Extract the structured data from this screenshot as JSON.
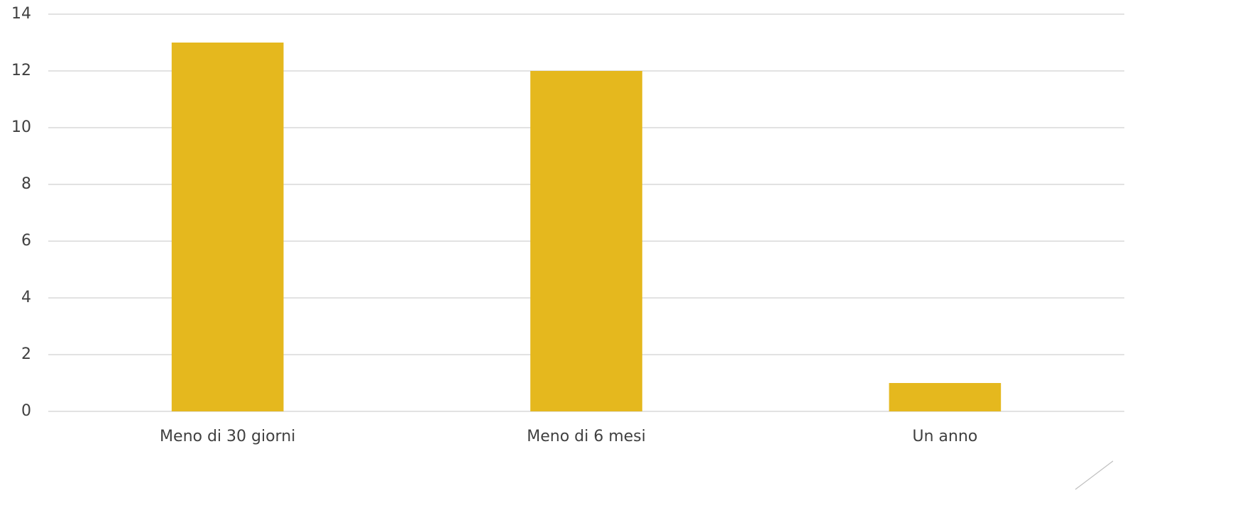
{
  "chart_data": {
    "type": "bar",
    "categories": [
      "Meno di 30 giorni",
      "Meno di 6 mesi",
      "Un anno"
    ],
    "values": [
      13,
      12,
      1
    ],
    "color": "#e5b81e",
    "ylim": [
      0,
      14
    ],
    "yticks": [
      0,
      2,
      4,
      6,
      8,
      10,
      12,
      14
    ],
    "grid": true
  }
}
